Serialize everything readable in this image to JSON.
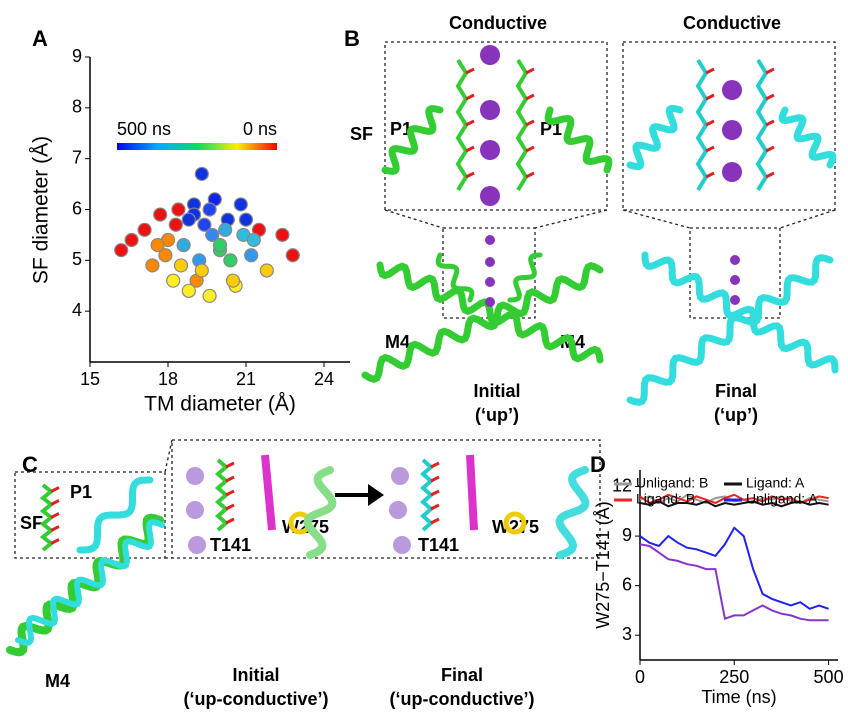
{
  "panel_labels": [
    "A",
    "B",
    "C",
    "D"
  ],
  "chart_data": [
    {
      "type": "scatter",
      "xlabel": "TM diameter (Å)",
      "ylabel": "SF diameter (Å)",
      "xlim": [
        15,
        25
      ],
      "ylim": [
        3,
        9
      ],
      "xticks": [
        15,
        18,
        21,
        24
      ],
      "yticks": [
        4,
        5,
        6,
        7,
        8,
        9
      ],
      "x": [
        16.2,
        16.6,
        17.1,
        17.4,
        17.7,
        17.9,
        18.2,
        18.4,
        18.6,
        18.8,
        19.0,
        19.2,
        19.4,
        19.6,
        19.8,
        20.0,
        20.3,
        20.6,
        20.9,
        21.2,
        21.5,
        21.8,
        22.4,
        22.8,
        18.0,
        18.5,
        19.1,
        19.7,
        20.4,
        21.0,
        18.3,
        19.0,
        19.6,
        20.2,
        20.8,
        17.6,
        19.3,
        20.0,
        21.3,
        19.3,
        18.8,
        20.5
      ],
      "values": [
        5.2,
        5.4,
        5.6,
        4.9,
        5.9,
        5.1,
        4.6,
        6.0,
        5.3,
        4.4,
        6.1,
        5.0,
        5.7,
        4.3,
        6.2,
        5.2,
        5.8,
        4.5,
        5.5,
        5.1,
        5.6,
        4.8,
        5.5,
        5.1,
        5.4,
        4.9,
        4.6,
        5.5,
        5.0,
        5.8,
        5.7,
        5.9,
        6.0,
        5.6,
        6.1,
        5.3,
        4.8,
        5.3,
        5.4,
        6.7,
        5.8,
        4.6
      ],
      "point_colors": [
        "#ee1111",
        "#ee1111",
        "#ee1111",
        "#ff8800",
        "#ee1111",
        "#ff8800",
        "#ffee22",
        "#ee1111",
        "#33aadd",
        "#ffee22",
        "#1133dd",
        "#3399ee",
        "#2244ee",
        "#ffee22",
        "#1122ee",
        "#33cc66",
        "#1133dd",
        "#ffee22",
        "#33bbdd",
        "#3399ee",
        "#ee1111",
        "#ffcc00",
        "#ee1111",
        "#ee1111",
        "#ff8800",
        "#ffcc00",
        "#ff8800",
        "#3388ee",
        "#33cc66",
        "#1133dd",
        "#ee1111",
        "#1133dd",
        "#2244ee",
        "#33aadd",
        "#1133dd",
        "#ff8800",
        "#ffcc00",
        "#33cc66",
        "#33bbdd",
        "#1133dd",
        "#1133dd",
        "#ffcc00"
      ],
      "colorbar": {
        "start_label": "500 ns",
        "end_label": "0 ns",
        "colors": [
          "#0000ff",
          "#00aaff",
          "#00dd66",
          "#ffee00",
          "#ff0000"
        ]
      }
    },
    {
      "type": "line",
      "xlabel": "Time (ns)",
      "ylabel": "W275−T141 (Å)",
      "xlim": [
        0,
        525
      ],
      "ylim": [
        1.5,
        13
      ],
      "xticks": [
        0,
        250,
        500
      ],
      "yticks": [
        3,
        6,
        9,
        12
      ],
      "x": [
        0,
        25,
        50,
        75,
        100,
        125,
        150,
        175,
        200,
        225,
        250,
        275,
        300,
        325,
        350,
        375,
        400,
        425,
        450,
        475,
        500
      ],
      "series": [
        {
          "name": "Unligand: B",
          "color": "#999999",
          "values": [
            11.2,
            11.4,
            11.0,
            11.3,
            11.1,
            11.5,
            11.2,
            11.0,
            11.3,
            11.4,
            11.1,
            11.2,
            11.0,
            11.3,
            11.2,
            11.4,
            11.1,
            11.0,
            11.3,
            11.2,
            11.1
          ]
        },
        {
          "name": "Ligand: B",
          "color": "#ee2222",
          "values": [
            11.4,
            11.0,
            11.2,
            11.5,
            11.3,
            11.1,
            11.4,
            11.2,
            11.0,
            11.3,
            11.5,
            11.2,
            11.3,
            11.1,
            11.4,
            11.2,
            11.3,
            11.0,
            11.2,
            11.4,
            11.3
          ]
        },
        {
          "name": "Ligand: A",
          "color": "#111111",
          "values": [
            11.0,
            10.9,
            11.1,
            10.8,
            11.0,
            11.0,
            10.9,
            11.1,
            10.8,
            11.0,
            10.9,
            11.0,
            11.1,
            10.9,
            11.0,
            10.8,
            11.0,
            11.1,
            10.9,
            11.0,
            10.9
          ]
        },
        {
          "color": "#8833cc",
          "values": [
            8.5,
            8.4,
            8.0,
            7.6,
            7.5,
            7.3,
            7.2,
            7.0,
            7.0,
            4.0,
            4.2,
            4.2,
            4.5,
            4.8,
            4.5,
            4.3,
            4.2,
            4.0,
            3.9,
            3.9,
            3.9
          ]
        },
        {
          "name": "Unligand: A",
          "color": "#2222ee",
          "values": [
            9.0,
            8.6,
            8.4,
            9.0,
            8.6,
            8.3,
            8.2,
            8.0,
            7.8,
            8.5,
            9.5,
            9.0,
            7.0,
            5.5,
            5.2,
            5.0,
            4.8,
            5.0,
            4.6,
            4.8,
            4.6
          ]
        }
      ]
    }
  ],
  "panel_B": {
    "left": {
      "title": "Conductive",
      "sf_label": "SF",
      "p1_left": "P1",
      "p1_right": "P1",
      "m4_left": "M4",
      "m4_right": "M4",
      "state": "Initial",
      "state_detail": "(‘up’)"
    },
    "right": {
      "title": "Conductive",
      "state": "Final",
      "state_detail": "(‘up’)"
    }
  },
  "panel_C": {
    "p1": "P1",
    "sf": "SF",
    "m4": "M4",
    "left": {
      "residue_1": "T141",
      "residue_2": "W275",
      "state": "Initial",
      "state_detail": "(‘up-conductive’)"
    },
    "right": {
      "residue_1": "T141",
      "residue_2": "W275",
      "state": "Final",
      "state_detail": "(‘up-conductive’)"
    }
  }
}
